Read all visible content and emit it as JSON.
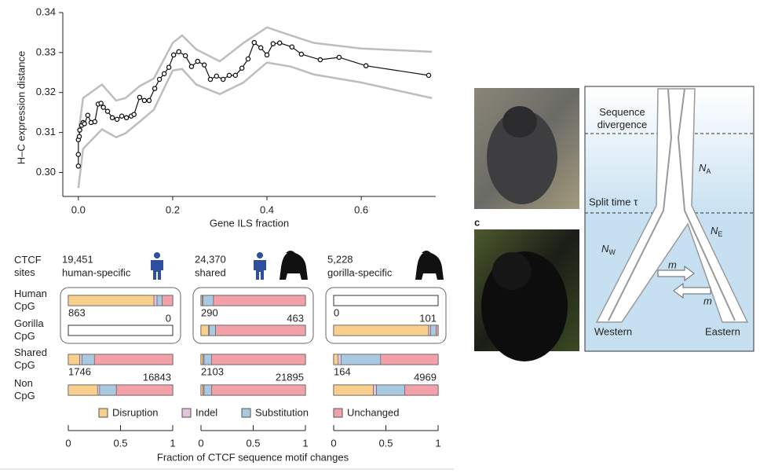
{
  "chart_data": [
    {
      "type": "line",
      "xlabel": "Gene ILS fraction",
      "ylabel": "H–C expression distance",
      "xlim": [
        -0.033,
        0.758
      ],
      "ylim": [
        0.294,
        0.34
      ],
      "xticks": [
        {
          "value": 0,
          "label": "0.0"
        },
        0.2,
        0.4,
        0.6
      ],
      "yticks": [
        {
          "value": 0.3,
          "label": "0.30"
        },
        0.31,
        0.32,
        0.33,
        0.34
      ],
      "x": [
        0,
        0,
        0,
        0.002,
        0.003,
        0.007,
        0.01,
        0.013,
        0.02,
        0.027,
        0.035,
        0.042,
        0.048,
        0.053,
        0.062,
        0.072,
        0.082,
        0.092,
        0.102,
        0.112,
        0.118,
        0.13,
        0.14,
        0.15,
        0.162,
        0.172,
        0.182,
        0.192,
        0.202,
        0.213,
        0.227,
        0.24,
        0.253,
        0.267,
        0.28,
        0.293,
        0.307,
        0.32,
        0.333,
        0.347,
        0.36,
        0.373,
        0.387,
        0.4,
        0.413,
        0.427,
        0.453,
        0.473,
        0.513,
        0.553,
        0.61,
        0.743
      ],
      "series": [
        {
          "color": "#111111",
          "values": [
            0.3016,
            0.3045,
            0.3082,
            0.309,
            0.3106,
            0.3118,
            0.3125,
            0.3122,
            0.3143,
            0.3125,
            0.3127,
            0.3171,
            0.3173,
            0.3163,
            0.3153,
            0.3137,
            0.3133,
            0.3141,
            0.3137,
            0.3141,
            0.3145,
            0.3188,
            0.318,
            0.318,
            0.321,
            0.3233,
            0.3247,
            0.3263,
            0.3294,
            0.3302,
            0.3292,
            0.3265,
            0.3278,
            0.3269,
            0.3233,
            0.3241,
            0.3233,
            0.3243,
            0.3243,
            0.3261,
            0.3284,
            0.3325,
            0.3312,
            0.3294,
            0.3322,
            0.3324,
            0.3314,
            0.3296,
            0.3282,
            0.3288,
            0.3267,
            0.3243
          ]
        }
      ],
      "bands": [
        {
          "color": "#bdbdbd",
          "x": [
            0,
            0.01,
            0.05,
            0.08,
            0.1,
            0.13,
            0.16,
            0.2,
            0.22,
            0.25,
            0.3,
            0.35,
            0.4,
            0.45,
            0.5,
            0.6,
            0.75
          ],
          "values": [
            0.3098,
            0.3186,
            0.322,
            0.318,
            0.3186,
            0.3216,
            0.3235,
            0.3324,
            0.3343,
            0.3308,
            0.3278,
            0.3324,
            0.3363,
            0.3343,
            0.3324,
            0.331,
            0.3302
          ]
        },
        {
          "color": "#bdbdbd",
          "x": [
            0,
            0.01,
            0.05,
            0.08,
            0.1,
            0.13,
            0.16,
            0.2,
            0.22,
            0.25,
            0.3,
            0.35,
            0.4,
            0.45,
            0.5,
            0.6,
            0.75
          ],
          "values": [
            0.2961,
            0.3059,
            0.3108,
            0.3088,
            0.3098,
            0.3127,
            0.3157,
            0.3255,
            0.3259,
            0.322,
            0.3196,
            0.3225,
            0.3275,
            0.3265,
            0.3245,
            0.3225,
            0.3186
          ]
        }
      ]
    },
    {
      "type": "stacked-hbar",
      "row_header": "CTCF sites",
      "xlabel": "Fraction of CTCF sequence motif changes",
      "categories": [
        "Human CpG",
        "Gorilla CpG",
        "Shared CpG",
        "Non CpG"
      ],
      "xlim": [
        0,
        1
      ],
      "xticks": [
        0,
        0.5,
        1
      ],
      "series": [
        {
          "name": "Disruption",
          "color": "#f8cf8c"
        },
        {
          "name": "Indel",
          "color": "#e3c4de"
        },
        {
          "name": "Substitution",
          "color": "#a8c9e0"
        },
        {
          "name": "Unchanged",
          "color": "#f2a1a9"
        }
      ],
      "panels": [
        {
          "count": {
            "value": 19451,
            "label": "19,451"
          },
          "label": "human-specific",
          "values": [
            [
              0.82,
              0.03,
              0.05,
              0.1
            ],
            [
              0,
              0,
              0,
              0
            ],
            [
              0.11,
              0.02,
              0.12,
              0.75
            ],
            [
              0.28,
              0.02,
              0.16,
              0.54
            ]
          ],
          "row_counts": [
            [
              863,
              0
            ],
            null,
            [
              1746,
              16843
            ],
            null
          ]
        },
        {
          "count": {
            "value": 24370,
            "label": "24,370"
          },
          "label": "shared",
          "values": [
            [
              0.01,
              0.01,
              0.1,
              0.88
            ],
            [
              0.07,
              0.01,
              0.06,
              0.86
            ],
            [
              0.02,
              0.01,
              0.07,
              0.9
            ],
            [
              0.02,
              0.01,
              0.07,
              0.9
            ]
          ],
          "row_counts": [
            [
              290,
              463
            ],
            null,
            [
              2103,
              21895
            ],
            null
          ]
        },
        {
          "count": {
            "value": 5228,
            "label": "5,228"
          },
          "label": "gorilla-specific",
          "values": [
            [
              0,
              0,
              0,
              0
            ],
            [
              0.91,
              0.02,
              0.05,
              0.02
            ],
            [
              0.04,
              0.03,
              0.38,
              0.55
            ],
            [
              0.38,
              0.03,
              0.27,
              0.32
            ]
          ],
          "row_counts": [
            [
              0,
              101
            ],
            null,
            [
              164,
              4969
            ],
            null
          ]
        }
      ]
    }
  ],
  "panel_label": "c",
  "diagram": {
    "divergence": "Sequence divergence",
    "split": "Split time τ",
    "na": {
      "text": "N",
      "sub": "A"
    },
    "ne": {
      "text": "N",
      "sub": "E"
    },
    "nw": {
      "text": "N",
      "sub": "W"
    },
    "m1": "m",
    "m2": "m",
    "western": "Western",
    "eastern": "Eastern"
  }
}
